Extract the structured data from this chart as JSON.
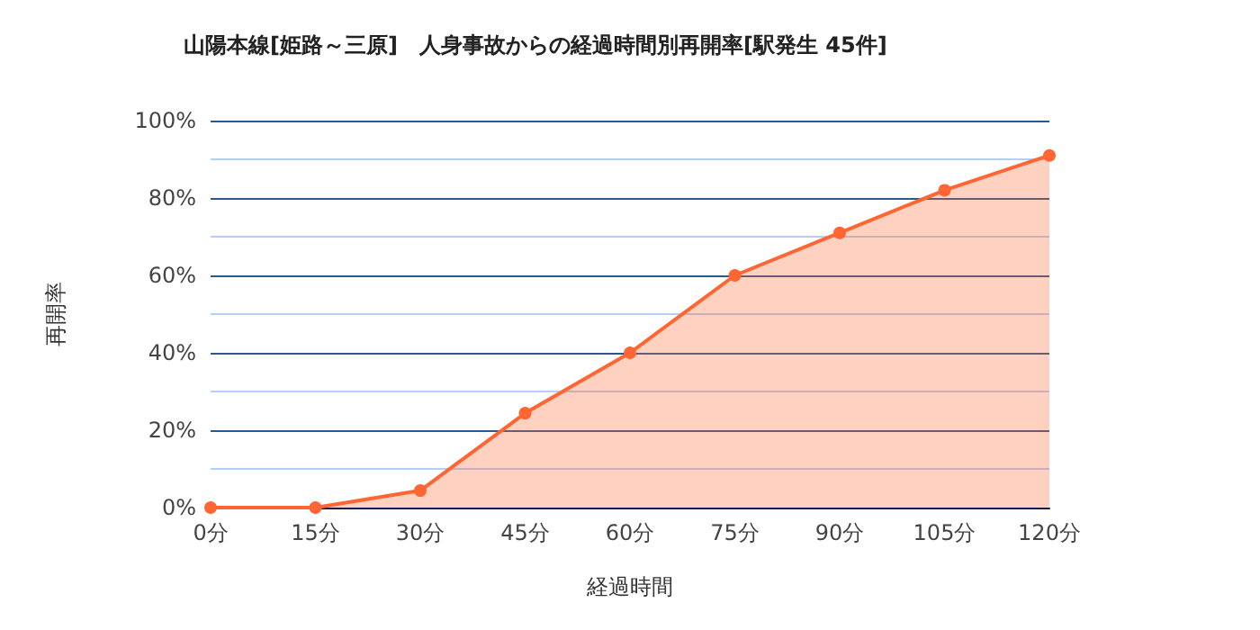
{
  "chart_data": {
    "type": "area",
    "title": "山陽本線[姫路～三原]　人身事故からの経過時間別再開率[駅発生 45件]",
    "xlabel": "経過時間",
    "ylabel": "再開率",
    "categories": [
      "0分",
      "15分",
      "30分",
      "45分",
      "60分",
      "75分",
      "90分",
      "105分",
      "120分"
    ],
    "series": [
      {
        "color": "#ff6633",
        "values": [
          0,
          0,
          4.4,
          24.4,
          40,
          60,
          71,
          82,
          91
        ]
      }
    ],
    "ylim": [
      0,
      100
    ],
    "yticks": [
      {
        "value": 0,
        "label": "0%"
      },
      {
        "value": 10,
        "label": null
      },
      {
        "value": 20,
        "label": "20%"
      },
      {
        "value": 30,
        "label": null
      },
      {
        "value": 40,
        "label": "40%"
      },
      {
        "value": 50,
        "label": null
      },
      {
        "value": 60,
        "label": "60%"
      },
      {
        "value": 70,
        "label": null
      },
      {
        "value": 80,
        "label": "80%"
      },
      {
        "value": 90,
        "label": null
      },
      {
        "value": 100,
        "label": "100%"
      }
    ],
    "grid": true,
    "marker": "circle"
  }
}
